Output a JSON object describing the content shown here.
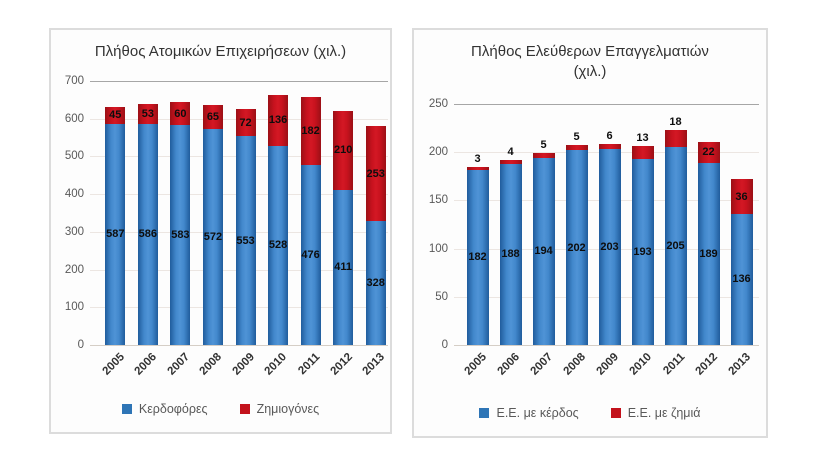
{
  "figure": {
    "background": "#ffffff",
    "accent_blue": "#2E75B6",
    "accent_red": "#C3121C"
  },
  "chart_data": [
    {
      "id": "individual-enterprises",
      "type": "bar",
      "stacked": true,
      "title": "Πλήθος Ατομικών Επιχειρήσεων (χιλ.)",
      "title_lines": [
        "Πλήθος Ατομικών Επιχειρήσεων (χιλ.)"
      ],
      "categories": [
        "2005",
        "2006",
        "2007",
        "2008",
        "2009",
        "2010",
        "2011",
        "2012",
        "2013"
      ],
      "series": [
        {
          "name": "Κερδοφόρες",
          "color": "#2E75B6",
          "values": [
            587,
            586,
            583,
            572,
            553,
            528,
            476,
            411,
            328
          ]
        },
        {
          "name": "Ζημιογόνες",
          "color": "#C3121C",
          "values": [
            45,
            53,
            60,
            65,
            72,
            136,
            182,
            210,
            253
          ]
        }
      ],
      "xlabel": "",
      "ylabel": "",
      "ylim": [
        0,
        700
      ],
      "ytick_step": 100,
      "ytick_labels": [
        "0",
        "100",
        "200",
        "300",
        "400",
        "500",
        "600",
        "700"
      ],
      "grid": true,
      "legend_position": "bottom"
    },
    {
      "id": "freelancers",
      "type": "bar",
      "stacked": true,
      "title": "Πλήθος Ελεύθερων Επαγγελματιών (χιλ.)",
      "title_lines": [
        "Πλήθος Ελεύθερων Επαγγελματιών",
        "(χιλ.)"
      ],
      "categories": [
        "2005",
        "2006",
        "2007",
        "2008",
        "2009",
        "2010",
        "2011",
        "2012",
        "2013"
      ],
      "series": [
        {
          "name": "Ε.Ε. με κέρδος",
          "color": "#2E75B6",
          "values": [
            182,
            188,
            194,
            202,
            203,
            193,
            205,
            189,
            136
          ]
        },
        {
          "name": "Ε.Ε. με ζημιά",
          "color": "#C3121C",
          "values": [
            3,
            4,
            5,
            5,
            6,
            13,
            18,
            22,
            36
          ]
        }
      ],
      "xlabel": "",
      "ylabel": "",
      "ylim": [
        0,
        250
      ],
      "ytick_step": 50,
      "ytick_labels": [
        "0",
        "50",
        "100",
        "150",
        "200",
        "250"
      ],
      "grid": true,
      "legend_position": "bottom"
    }
  ]
}
